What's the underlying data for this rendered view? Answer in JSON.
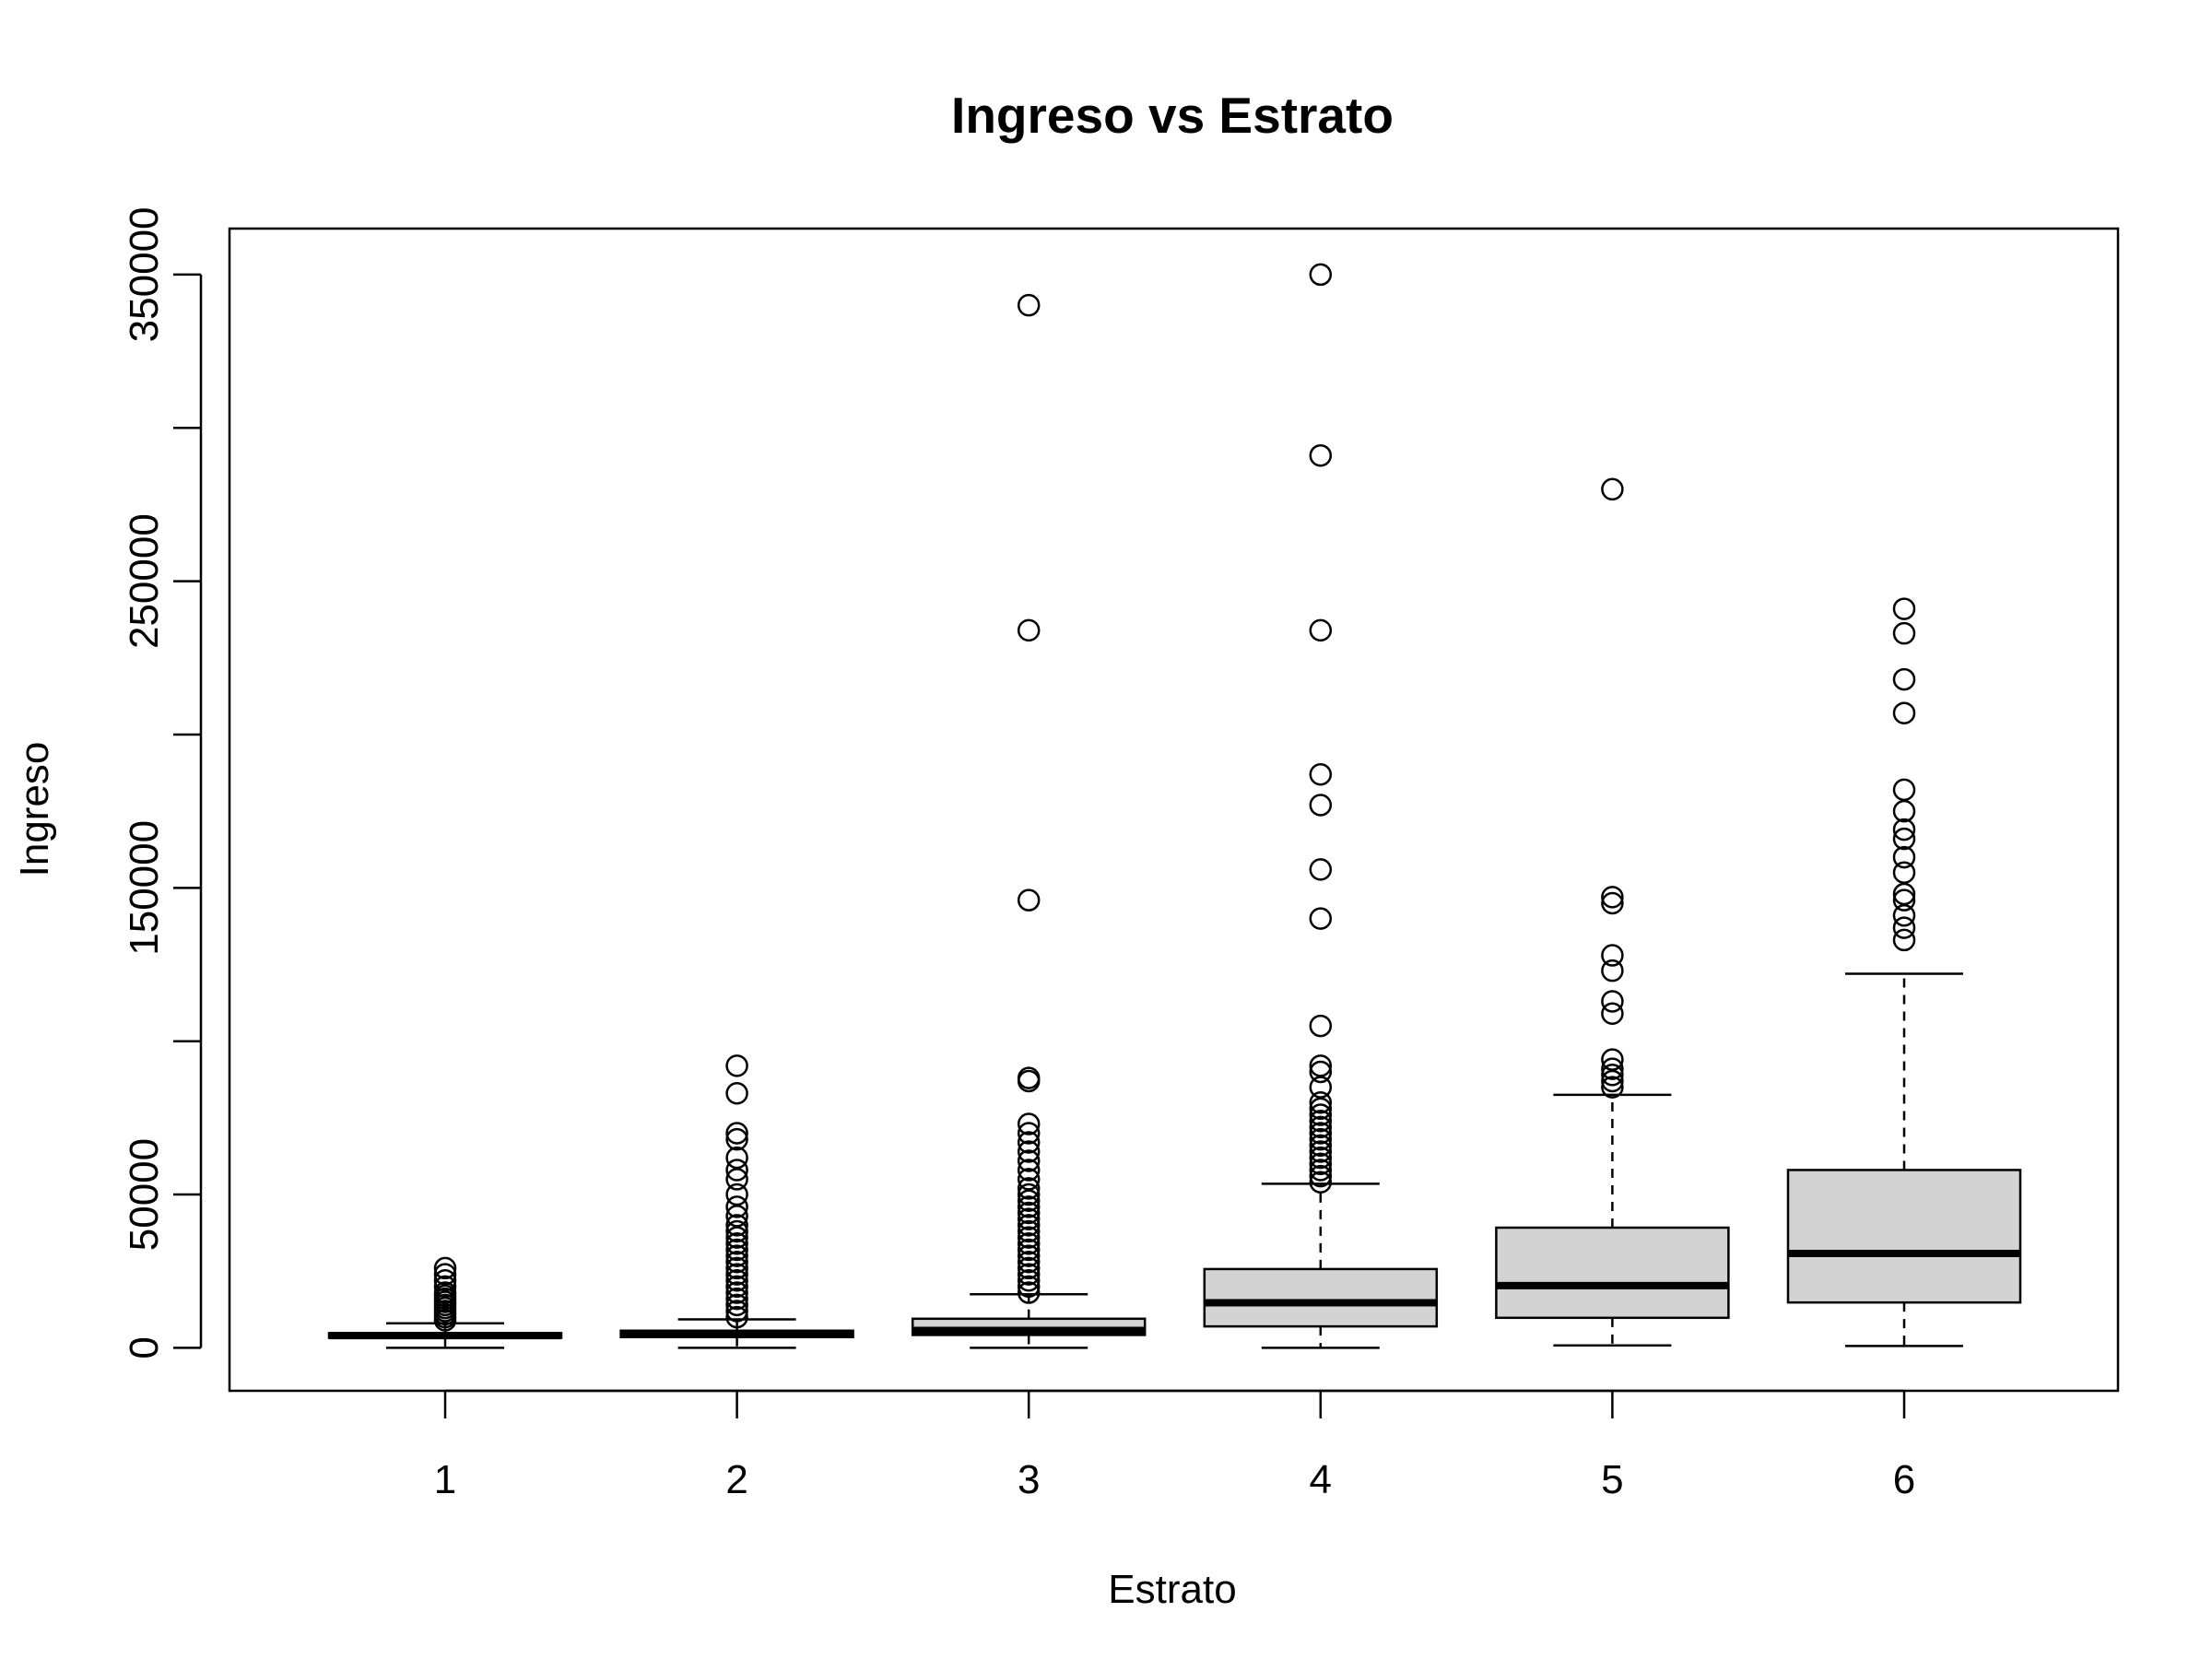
{
  "chart_data": {
    "type": "boxplot",
    "title": "Ingreso vs Estrato",
    "xlabel": "Estrato",
    "ylabel": "Ingreso",
    "categories": [
      "1",
      "2",
      "3",
      "4",
      "5",
      "6"
    ],
    "ylim": [
      -14000,
      365000
    ],
    "y_ticks": [
      0,
      50000,
      150000,
      250000,
      350000
    ],
    "y_minor_ticks": [
      100000,
      200000,
      300000
    ],
    "grid": false,
    "box_fill": "#d3d3d3",
    "stroke": "#000000",
    "boxes": [
      {
        "category": "1",
        "whisker_low": 0,
        "q1": 3300,
        "median": 4000,
        "q3": 4800,
        "whisker_high": 8000,
        "outliers": [
          9000,
          10000,
          11000,
          12000,
          13000,
          14000,
          15000,
          16000,
          17000,
          18000,
          20000,
          22000,
          24000,
          26000
        ]
      },
      {
        "category": "2",
        "whisker_low": 0,
        "q1": 3500,
        "median": 4700,
        "q3": 5600,
        "whisker_high": 9300,
        "outliers": [
          10000,
          12000,
          14000,
          16000,
          18000,
          20000,
          22000,
          24000,
          26000,
          28000,
          30000,
          32000,
          34000,
          36000,
          38000,
          40000,
          43000,
          46000,
          50000,
          55000,
          58000,
          62000,
          68000,
          70000,
          83000,
          92000
        ]
      },
      {
        "category": "3",
        "whisker_low": 0,
        "q1": 4200,
        "median": 5700,
        "q3": 9500,
        "whisker_high": 17500,
        "outliers": [
          18000,
          20000,
          22000,
          24000,
          26000,
          28000,
          30000,
          32000,
          34000,
          36000,
          38000,
          40000,
          42000,
          44000,
          46000,
          48000,
          50000,
          52000,
          55000,
          58000,
          61000,
          64000,
          67000,
          70000,
          73000,
          87000,
          88000,
          146000,
          234000,
          340000
        ]
      },
      {
        "category": "4",
        "whisker_low": 0,
        "q1": 7000,
        "median": 14700,
        "q3": 25700,
        "whisker_high": 53500,
        "outliers": [
          54000,
          56000,
          58000,
          60000,
          62000,
          64000,
          66000,
          68000,
          70000,
          72000,
          74000,
          76000,
          78000,
          80000,
          85000,
          90000,
          92000,
          105000,
          140000,
          156000,
          177000,
          187000,
          234000,
          291000,
          350000
        ]
      },
      {
        "category": "5",
        "whisker_low": 800,
        "q1": 9800,
        "median": 20300,
        "q3": 39200,
        "whisker_high": 82500,
        "outliers": [
          85000,
          87000,
          89000,
          91000,
          94000,
          109000,
          113000,
          123000,
          128000,
          145000,
          147000,
          280000
        ]
      },
      {
        "category": "6",
        "whisker_low": 600,
        "q1": 14800,
        "median": 30800,
        "q3": 58000,
        "whisker_high": 122000,
        "outliers": [
          133000,
          137000,
          141000,
          146000,
          148000,
          155000,
          160000,
          166000,
          169000,
          175000,
          182000,
          207000,
          218000,
          233000,
          241000
        ]
      }
    ]
  }
}
